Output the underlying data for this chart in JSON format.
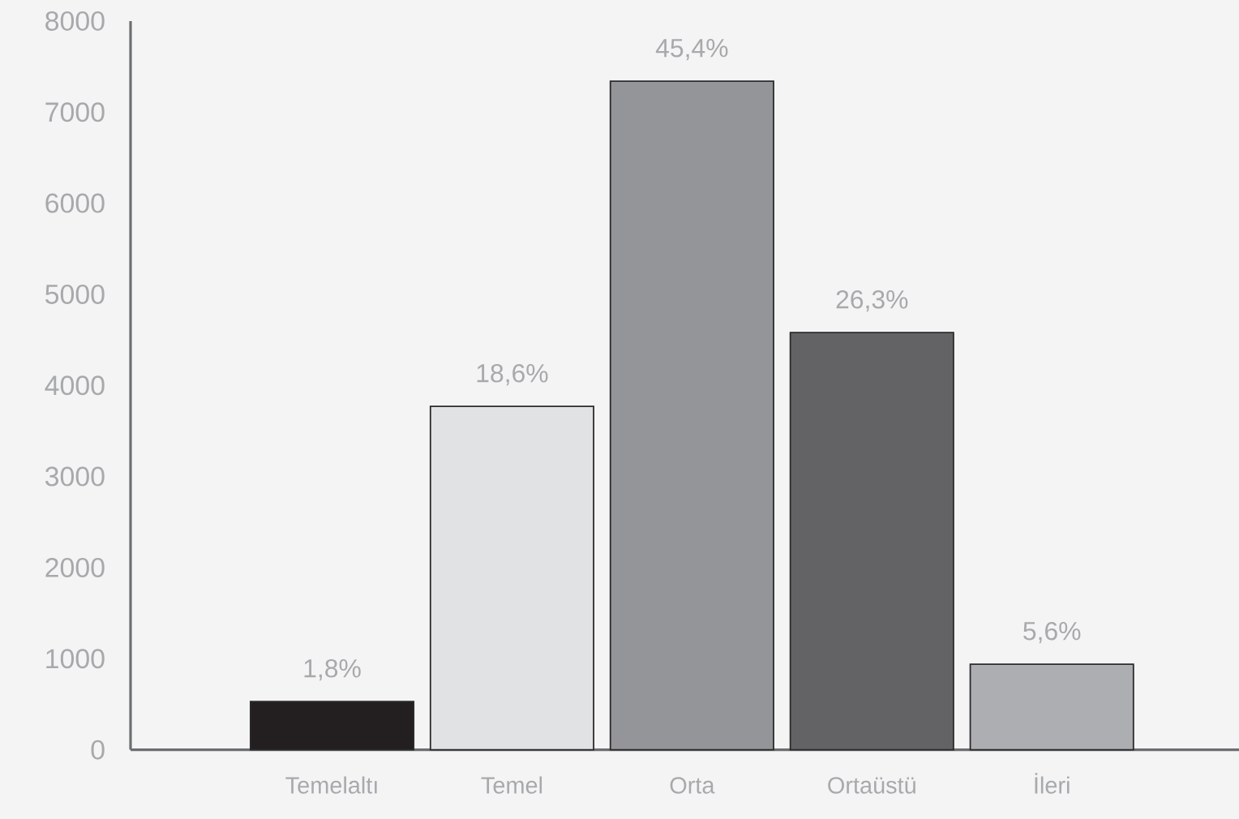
{
  "chart_data": {
    "type": "bar",
    "categories": [
      "Temelaltı",
      "Temel",
      "Orta",
      "Ortaüstü",
      "İleri"
    ],
    "values": [
      530,
      3770,
      7340,
      4580,
      940
    ],
    "colors": [
      "#231f20",
      "#e1e2e4",
      "#939598",
      "#636365",
      "#adaeb1"
    ],
    "annotations": [
      {
        "text": "1,8%",
        "x": "Temelaltı",
        "y": 530
      },
      {
        "text": "18,6%",
        "x": "Temel",
        "y": 3770
      },
      {
        "text": "45,4%",
        "x": "Orta",
        "y": 7340
      },
      {
        "text": "26,3%",
        "x": "Ortaüstü",
        "y": 4580
      },
      {
        "text": "5,6%",
        "x": "İleri",
        "y": 940
      }
    ],
    "ylim": [
      0,
      8000
    ],
    "yticks": [
      0,
      1000,
      2000,
      3000,
      4000,
      5000,
      6000,
      7000,
      8000
    ]
  }
}
